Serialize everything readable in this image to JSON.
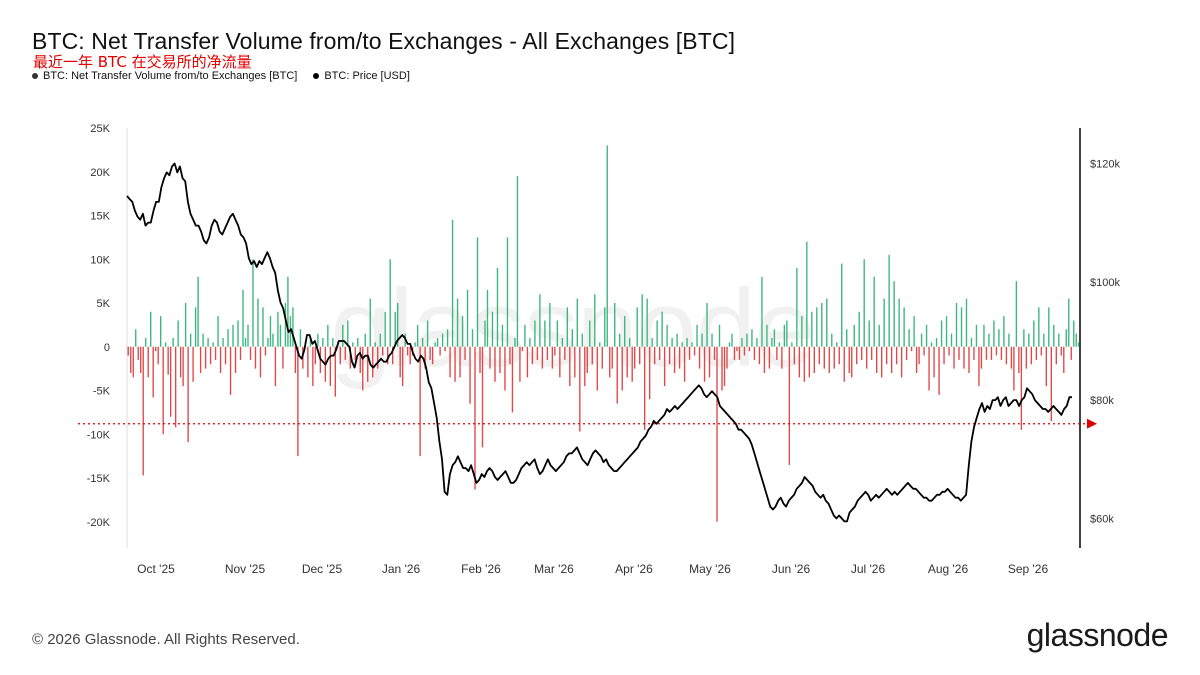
{
  "header": {
    "title": "BTC: Net Transfer Volume from/to Exchanges - All Exchanges [BTC]",
    "subtitle": "最近一年 BTC 在交易所的净流量"
  },
  "legend": [
    {
      "label": "BTC: Net Transfer Volume from/to Exchanges [BTC]",
      "color": "#333333"
    },
    {
      "label": "BTC: Price [USD]",
      "color": "#000000"
    }
  ],
  "footer": {
    "copyright": "© 2026 Glassnode. All Rights Reserved.",
    "logo": "glassnode",
    "watermark": "glassnode"
  },
  "colors": {
    "inflow": "#e04848",
    "outflow": "#3cb67e",
    "price": "#000000",
    "marker": "#e00000"
  },
  "chart_data": {
    "type": "bar",
    "x_ticks": [
      "Oct '25",
      "Nov '25",
      "Dec '25",
      "Jan '26",
      "Feb '26",
      "Mar '26",
      "Apr '26",
      "May '26",
      "Jun '26",
      "Jul '26",
      "Aug '26",
      "Sep '26"
    ],
    "y_left_ticks": [
      "25K",
      "20K",
      "15K",
      "10K",
      "5K",
      "0",
      "-5K",
      "-10K",
      "-15K",
      "-20K"
    ],
    "y_left_range": [
      -23000,
      25000
    ],
    "y_right_ticks": [
      "$120k",
      "$100k",
      "$80k",
      "$60k"
    ],
    "y_right_range": [
      55000,
      126000
    ],
    "reference_price_label": "$80k",
    "series": [
      {
        "name": "BTC: Net Transfer Volume from/to Exchanges [BTC]",
        "kind": "bar",
        "values": [
          -1000,
          -3000,
          -3500,
          2000,
          -1500,
          -3000,
          -14700,
          1000,
          -3500,
          4000,
          -5800,
          -500,
          -2000,
          3500,
          -10000,
          500,
          -3200,
          -8000,
          1000,
          -9200,
          3000,
          -3500,
          -4500,
          5000,
          -10900,
          1500,
          -4000,
          4500,
          8000,
          -3000,
          1500,
          -2500,
          1000,
          -2000,
          500,
          -1500,
          3500,
          -3000,
          1000,
          -2000,
          2000,
          -5500,
          2500,
          -3000,
          3000,
          -1500,
          6500,
          1000,
          2500,
          -1500,
          10000,
          -2500,
          5500,
          -3500,
          4500,
          -1000,
          1000,
          3500,
          1500,
          -4500,
          4000,
          2500,
          -2500,
          5000,
          8000,
          3500,
          4500,
          -3000,
          -12500,
          2000,
          -2500,
          500,
          -3500,
          1000,
          -4500,
          -2000,
          1500,
          -3000,
          1000,
          -4000,
          2500,
          -4500,
          1000,
          -5700,
          500,
          -2000,
          2500,
          -1500,
          3000,
          -2500,
          500,
          -1500,
          1000,
          -3000,
          -5000,
          1500,
          -4000,
          5500,
          -3500,
          500,
          -2500,
          1500,
          -1000,
          4000,
          -2000,
          10000,
          -2000,
          4000,
          5000,
          -3500,
          -4500,
          1500,
          -1000,
          -2000,
          -1000,
          500,
          2500,
          -12500,
          1000,
          -2500,
          3000,
          -1500,
          -2000,
          500,
          1000,
          -1000,
          1500,
          -500,
          2000,
          -3500,
          14500,
          -4000,
          5500,
          -3500,
          3500,
          -1500,
          6500,
          -6500,
          2000,
          -16300,
          12500,
          -3000,
          -11500,
          3000,
          6500,
          -2500,
          4000,
          -4000,
          9000,
          -3000,
          2500,
          -5000,
          12500,
          -2000,
          -7500,
          1000,
          19500,
          -4000,
          -500,
          2500,
          -3500,
          1000,
          -2000,
          3000,
          -1500,
          6000,
          -2500,
          3000,
          -1500,
          5000,
          -2500,
          -1000,
          3000,
          -3500,
          1000,
          -1500,
          4500,
          -4500,
          2000,
          -3500,
          5500,
          -9700,
          1500,
          -4500,
          -3000,
          3000,
          -2000,
          6000,
          -5000,
          500,
          -2500,
          4500,
          23000,
          -3500,
          -2500,
          5000,
          -6500,
          1500,
          -5000,
          3500,
          -3500,
          1000,
          -4000,
          -2500,
          4500,
          -2000,
          6000,
          -9500,
          5500,
          -6000,
          1000,
          -2000,
          3000,
          -1500,
          4000,
          -4500,
          2500,
          -2000,
          1000,
          -3000,
          1500,
          -2500,
          500,
          -4000,
          1000,
          -1500,
          500,
          -1000,
          2500,
          -2500,
          1500,
          -4000,
          5000,
          -3500,
          1500,
          -1500,
          -20000,
          2500,
          -5000,
          -4500,
          -2500,
          500,
          1500,
          -1500,
          -500,
          -1500,
          1000,
          -1000,
          1500,
          -500,
          2000,
          -1500,
          1000,
          -2000,
          8000,
          -3000,
          2500,
          -2500,
          1000,
          2000,
          -1500,
          500,
          -2500,
          2500,
          3000,
          -13500,
          500,
          -2000,
          9000,
          -3500,
          3500,
          -4000,
          12000,
          -3500,
          4000,
          -3000,
          4500,
          -2000,
          5000,
          -2500,
          5500,
          -3000,
          1500,
          -2500,
          500,
          -2000,
          9500,
          -4000,
          2000,
          -3000,
          -3500,
          2500,
          -2000,
          4000,
          -1500,
          10000,
          -2500,
          3000,
          -1500,
          8000,
          -3000,
          2500,
          -3500,
          5500,
          -2000,
          10500,
          -3000,
          7500,
          -2000,
          5500,
          -3500,
          4500,
          -1500,
          2000,
          -500,
          3500,
          -3000,
          -2000,
          1500,
          -1000,
          2500,
          -5000,
          500,
          -3500,
          1000,
          -5500,
          3000,
          -2000,
          3500,
          -1000,
          1500,
          -2500,
          5000,
          -1500,
          4500,
          -2500,
          5500,
          -3000,
          1000,
          -1500,
          2500,
          -4500,
          -2500,
          2500,
          -1500,
          1500,
          -1500,
          3000,
          -1000,
          2000,
          -1500,
          3500,
          -2000,
          1500,
          -2500,
          -5000,
          7500,
          -3000,
          -9500,
          2000,
          -2500,
          1500,
          -2000,
          3000,
          -1500,
          4500,
          -1000,
          1500,
          -4500,
          4500,
          -8500,
          2500,
          -2000,
          1500,
          -1000,
          -3000,
          2000,
          5500,
          -1500,
          3000,
          1500,
          500
        ]
      },
      {
        "name": "BTC: Price [USD]",
        "kind": "line",
        "values": [
          114500,
          114000,
          113500,
          112000,
          111000,
          110500,
          111500,
          109500,
          110000,
          110000,
          112000,
          113500,
          113500,
          116000,
          117500,
          118500,
          118000,
          119500,
          120000,
          118500,
          119500,
          117500,
          117000,
          113500,
          111500,
          110500,
          109500,
          109500,
          108500,
          107000,
          106500,
          107500,
          109500,
          110500,
          110000,
          108500,
          108000,
          109000,
          110000,
          111000,
          111500,
          110500,
          109500,
          108000,
          107500,
          106500,
          104000,
          103000,
          103500,
          102500,
          103500,
          103000,
          104000,
          105000,
          104000,
          102500,
          101500,
          98500,
          96500,
          95500,
          93500,
          91500,
          92000,
          90500,
          89000,
          87500,
          87000,
          88500,
          91000,
          91000,
          89500,
          90000,
          88500,
          87000,
          86500,
          86000,
          87000,
          87500,
          87500,
          88500,
          90000,
          90000,
          90000,
          89500,
          89000,
          86500,
          85500,
          87500,
          88000,
          87000,
          87500,
          87500,
          86000,
          85500,
          86000,
          86500,
          87000,
          86500,
          86500,
          87500,
          88000,
          89000,
          90000,
          90500,
          91000,
          90500,
          89500,
          89500,
          88000,
          87000,
          86500,
          87500,
          87000,
          85500,
          83000,
          82000,
          79500,
          77000,
          73000,
          70000,
          64500,
          64000,
          67500,
          69000,
          69500,
          70500,
          69500,
          68500,
          68500,
          68000,
          69000,
          67500,
          66000,
          66500,
          67500,
          67000,
          68000,
          68500,
          68000,
          67000,
          66500,
          67000,
          67500,
          68000,
          67000,
          66000,
          66000,
          66500,
          67500,
          68500,
          69000,
          69500,
          69000,
          69500,
          70000,
          68500,
          67500,
          68000,
          69000,
          70000,
          69000,
          68500,
          68000,
          68500,
          69000,
          69500,
          70500,
          71000,
          71000,
          71500,
          72000,
          71000,
          70000,
          69500,
          69000,
          70000,
          71000,
          71500,
          71000,
          70500,
          69500,
          70000,
          69000,
          68500,
          68000,
          68000,
          68500,
          69000,
          69500,
          70000,
          70500,
          71000,
          71500,
          72000,
          73000,
          73500,
          74000,
          75000,
          75500,
          76500,
          76000,
          76500,
          77000,
          77500,
          78500,
          78000,
          78500,
          79000,
          78500,
          79000,
          79500,
          80000,
          80500,
          81000,
          81500,
          82000,
          82500,
          82000,
          81000,
          80500,
          81000,
          81500,
          81000,
          80500,
          79000,
          78500,
          78000,
          77500,
          77000,
          76500,
          76000,
          75000,
          75000,
          74500,
          74000,
          73500,
          72500,
          71000,
          69500,
          68000,
          66500,
          65000,
          63500,
          62000,
          61500,
          62000,
          63000,
          63500,
          62500,
          62000,
          63000,
          63500,
          64000,
          65000,
          65500,
          66000,
          67000,
          66500,
          66000,
          65500,
          64500,
          64000,
          63500,
          64000,
          63000,
          62500,
          61500,
          60500,
          60000,
          60500,
          60000,
          59500,
          59500,
          61000,
          61500,
          62000,
          63000,
          63500,
          64000,
          64500,
          64000,
          63000,
          63500,
          64000,
          63500,
          64000,
          64500,
          65000,
          64500,
          64000,
          64500,
          64000,
          64500,
          65000,
          65500,
          66000,
          65500,
          65000,
          65000,
          64500,
          64000,
          63500,
          63500,
          63000,
          63000,
          63500,
          64000,
          64000,
          64500,
          64500,
          65000,
          64500,
          64000,
          63500,
          63500,
          63000,
          63500,
          64000,
          69000,
          73000,
          75500,
          77000,
          78500,
          79500,
          78000,
          79000,
          78500,
          80000,
          80000,
          80500,
          79000,
          80000,
          80500,
          79000,
          79500,
          80000,
          80000,
          79000,
          80000,
          80500,
          82000,
          81500,
          81000,
          80000,
          79500,
          79000,
          78500,
          78500,
          78000,
          78500,
          79000,
          78500,
          78000,
          77500,
          78500,
          79000,
          80500,
          80500
        ]
      }
    ]
  }
}
